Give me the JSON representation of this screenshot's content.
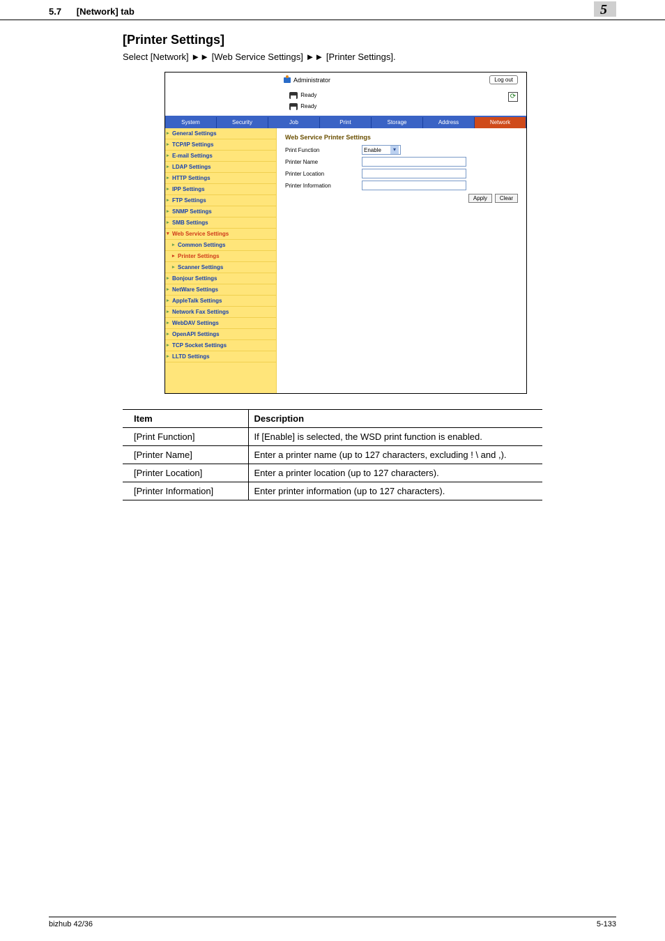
{
  "header": {
    "section_num": "5.7",
    "section_title": "[Network] tab",
    "chapter_num": "5"
  },
  "page_title": "[Printer Settings]",
  "lead_pre": "Select [Network] ",
  "lead_mid": " [Web Service Settings] ",
  "lead_post": " [Printer Settings].",
  "arrow": "►►",
  "screenshot": {
    "admin_label": "Administrator",
    "logout": "Log out",
    "ready1": "Ready",
    "ready2": "Ready",
    "refresh_glyph": "⟳",
    "tabs": [
      "System",
      "Security",
      "Job",
      "Print",
      "Storage",
      "Address",
      "Network"
    ],
    "sidebar": [
      "General Settings",
      "TCP/IP Settings",
      "E-mail Settings",
      "LDAP Settings",
      "HTTP Settings",
      "IPP Settings",
      "FTP Settings",
      "SNMP Settings",
      "SMB Settings"
    ],
    "sidebar_expanded": "Web Service Settings",
    "sidebar_subs": [
      "Common Settings",
      "Printer Settings",
      "Scanner Settings"
    ],
    "sidebar_after": [
      "Bonjour Settings",
      "NetWare Settings",
      "AppleTalk Settings",
      "Network Fax Settings",
      "WebDAV Settings",
      "OpenAPI Settings",
      "TCP Socket Settings",
      "LLTD Settings"
    ],
    "main_heading": "Web Service Printer Settings",
    "fields": {
      "print_function": "Print Function",
      "printer_name": "Printer Name",
      "printer_location": "Printer Location",
      "printer_information": "Printer Information"
    },
    "select_value": "Enable",
    "apply_btn": "Apply",
    "clear_btn": "Clear"
  },
  "table": {
    "col1": "Item",
    "col2": "Description",
    "rows": [
      [
        "[Print Function]",
        "If [Enable] is selected, the WSD print function is enabled."
      ],
      [
        "[Printer Name]",
        "Enter a printer name (up to 127 characters, excluding ! \\ and ,)."
      ],
      [
        "[Printer Location]",
        "Enter a printer location (up to 127 characters)."
      ],
      [
        "[Printer Information]",
        "Enter printer information (up to 127 characters)."
      ]
    ]
  },
  "footer": {
    "left": "bizhub 42/36",
    "right": "5-133"
  }
}
